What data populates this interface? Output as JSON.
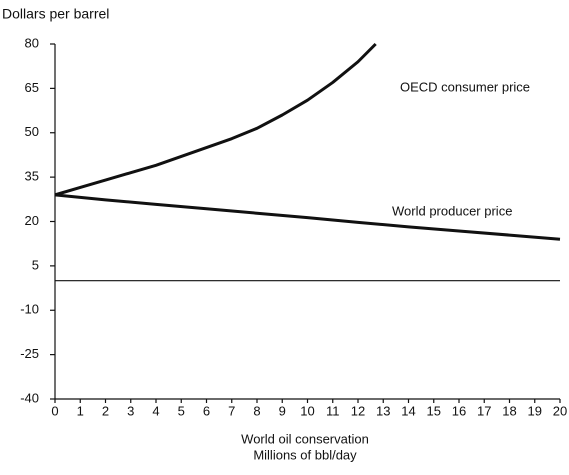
{
  "chart_data": {
    "type": "line",
    "y_axis_label": "Dollars per barrel",
    "x_axis_label": [
      "World oil conservation",
      "Millions of bbl/day"
    ],
    "xlim": [
      0,
      20
    ],
    "xticks": [
      0,
      1,
      2,
      3,
      4,
      5,
      6,
      7,
      8,
      9,
      10,
      11,
      12,
      13,
      14,
      15,
      16,
      17,
      18,
      19,
      20
    ],
    "ylim": [
      -40,
      80
    ],
    "yticks": [
      80,
      65,
      50,
      35,
      20,
      5,
      -10,
      -25,
      -40
    ],
    "color": "#111111",
    "series": [
      {
        "name": "OECD consumer price",
        "x": [
          0,
          1,
          2,
          3,
          4,
          5,
          6,
          7,
          8,
          9,
          10,
          11,
          12,
          12.7
        ],
        "values": [
          29,
          31.5,
          34,
          36.5,
          39,
          42,
          45,
          48,
          51.5,
          56,
          61,
          67,
          74,
          80
        ]
      },
      {
        "name": "World producer price",
        "x": [
          0,
          2,
          4,
          6,
          8,
          10,
          12,
          14,
          16,
          18,
          20
        ],
        "values": [
          29,
          27.3,
          25.8,
          24.3,
          22.8,
          21.3,
          19.7,
          18.2,
          16.8,
          15.4,
          14
        ]
      }
    ]
  }
}
